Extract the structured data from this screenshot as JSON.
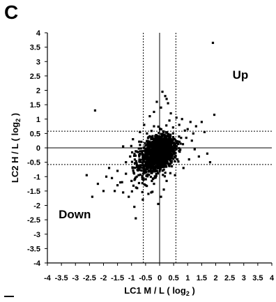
{
  "panel_label": "C",
  "chart_data": {
    "type": "scatter",
    "title": "",
    "xlabel": "LC1 M / L ( log2 )",
    "ylabel": "LC2 H / L ( log2 )",
    "xlabel_parts": {
      "text": "LC1 M / L ( log",
      "sub": "2",
      "end": " )"
    },
    "ylabel_parts": {
      "text": "LC2 H / L ( log",
      "sub": "2",
      "end": " )"
    },
    "xlim": [
      -4,
      4
    ],
    "ylim": [
      -4,
      4
    ],
    "xticks": [
      -4,
      -3.5,
      -3,
      -2.5,
      -2,
      -1.5,
      -1,
      -0.5,
      0,
      0.5,
      1,
      1.5,
      2,
      2.5,
      3,
      3.5,
      4
    ],
    "yticks": [
      -4,
      -3.5,
      -3,
      -2.5,
      -2,
      -1.5,
      -1,
      -0.5,
      0,
      0.5,
      1,
      1.5,
      2,
      2.5,
      3,
      3.5,
      4
    ],
    "thresholds": {
      "x": [
        -0.58,
        0.58
      ],
      "y": [
        -0.58,
        0.58
      ]
    },
    "annotations": [
      {
        "text": "Up",
        "x": 2.6,
        "y": 2.4
      },
      {
        "text": "Down",
        "x": -3.6,
        "y": -2.45
      }
    ],
    "grid": false,
    "legend": "none",
    "marker_color": "#000000",
    "series": [
      {
        "values": [
          [
            1.9,
            3.65
          ],
          [
            -2.3,
            1.3
          ],
          [
            0.1,
            1.95
          ],
          [
            0.2,
            1.8
          ],
          [
            -0.1,
            1.6
          ],
          [
            0.3,
            1.55
          ],
          [
            0.05,
            1.4
          ],
          [
            1.95,
            1.15
          ],
          [
            1.5,
            0.9
          ],
          [
            1.3,
            0.75
          ],
          [
            1.1,
            0.9
          ],
          [
            -0.35,
            1.1
          ],
          [
            0.4,
            1.2
          ],
          [
            -0.2,
            1.25
          ],
          [
            0.25,
            1.7
          ],
          [
            0.6,
            1.05
          ],
          [
            -0.55,
            0.8
          ],
          [
            0.9,
            0.6
          ],
          [
            1.6,
            0.55
          ],
          [
            1.4,
            -0.3
          ],
          [
            1.8,
            -0.5
          ],
          [
            1.7,
            -0.2
          ],
          [
            -0.05,
            -1.95
          ],
          [
            0.05,
            -1.7
          ],
          [
            -0.3,
            -1.55
          ],
          [
            -0.6,
            -1.8
          ],
          [
            -0.85,
            -2.45
          ],
          [
            -0.9,
            -2.05
          ],
          [
            -1.1,
            -1.7
          ],
          [
            -1.3,
            -1.55
          ],
          [
            -1.5,
            -1.3
          ],
          [
            -1.7,
            -1.05
          ],
          [
            -2.2,
            -1.25
          ],
          [
            -2.6,
            -0.95
          ],
          [
            -1.2,
            -0.9
          ],
          [
            -1.0,
            -1.15
          ],
          [
            -0.8,
            -1.4
          ],
          [
            -1.4,
            -1.2
          ],
          [
            -1.6,
            -1.5
          ],
          [
            -1.9,
            -1.0
          ],
          [
            -2.0,
            -1.5
          ],
          [
            -0.75,
            -0.95
          ],
          [
            -0.5,
            -1.3
          ],
          [
            -1.2,
            -0.5
          ],
          [
            -1.05,
            -0.3
          ],
          [
            -1.3,
            0.05
          ],
          [
            -0.95,
            0.3
          ],
          [
            -0.7,
            0.55
          ],
          [
            -0.45,
            0.5
          ],
          [
            -0.2,
            0.75
          ],
          [
            0.35,
            0.95
          ],
          [
            0.7,
            0.8
          ],
          [
            0.95,
            0.35
          ],
          [
            1.15,
            0.25
          ],
          [
            1.25,
            -0.05
          ],
          [
            1.05,
            -0.4
          ],
          [
            0.85,
            -0.7
          ],
          [
            0.55,
            -0.95
          ],
          [
            0.25,
            -1.15
          ],
          [
            -0.2,
            -1.25
          ],
          [
            1.2,
            0.5
          ],
          [
            1.0,
            0.65
          ],
          [
            0.8,
            1.0
          ],
          [
            -0.4,
            -1.6
          ],
          [
            0.15,
            -1.45
          ],
          [
            -1.8,
            -0.7
          ],
          [
            -1.5,
            -0.8
          ],
          [
            -2.4,
            -1.7
          ]
        ]
      }
    ],
    "cloud": {
      "points": 1500,
      "center": [
        0.0,
        -0.15
      ],
      "sd": [
        0.26,
        0.27
      ],
      "tail_points": 200,
      "tail_center": [
        -0.45,
        -0.5
      ],
      "tail_sd": [
        0.3,
        0.35
      ]
    }
  }
}
